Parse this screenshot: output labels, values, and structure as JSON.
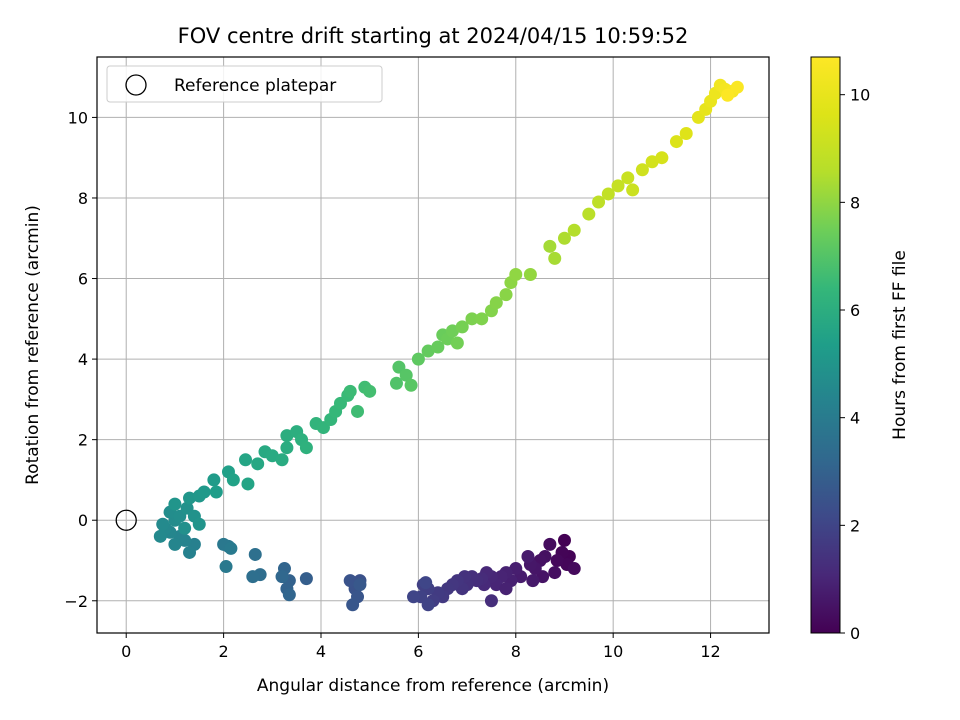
{
  "chart_data": {
    "type": "scatter",
    "title": "FOV centre drift starting at 2024/04/15 10:59:52",
    "xlabel": "Angular distance from reference (arcmin)",
    "ylabel": "Rotation from reference (arcmin)",
    "colorbar_label": "Hours from first FF file",
    "xlim": [
      -0.6,
      13.2
    ],
    "ylim": [
      -2.8,
      11.5
    ],
    "x_ticks": [
      0,
      2,
      4,
      6,
      8,
      10,
      12
    ],
    "y_ticks": [
      -2,
      0,
      2,
      4,
      6,
      8,
      10
    ],
    "x_tick_labels": [
      "0",
      "2",
      "4",
      "6",
      "8",
      "10",
      "12"
    ],
    "y_tick_labels": [
      "−2",
      "0",
      "2",
      "4",
      "6",
      "8",
      "10"
    ],
    "colorbar_range": [
      0,
      10.7
    ],
    "colorbar_ticks": [
      0,
      2,
      4,
      6,
      8,
      10
    ],
    "colorbar_tick_labels": [
      "0",
      "2",
      "4",
      "6",
      "8",
      "10"
    ],
    "colormap": "viridis",
    "grid": true,
    "legend": {
      "position": "top-left",
      "entries": [
        "Reference platepar"
      ]
    },
    "reference_point": {
      "x": 0,
      "y": 0
    },
    "points": [
      [
        9.0,
        -0.5,
        0.0
      ],
      [
        9.1,
        -0.9,
        0.05
      ],
      [
        8.95,
        -0.8,
        0.1
      ],
      [
        9.05,
        -1.1,
        0.15
      ],
      [
        8.85,
        -1.0,
        0.2
      ],
      [
        9.2,
        -1.2,
        0.25
      ],
      [
        8.7,
        -0.6,
        0.3
      ],
      [
        8.8,
        -1.3,
        0.35
      ],
      [
        8.6,
        -0.9,
        0.4
      ],
      [
        8.5,
        -1.0,
        0.45
      ],
      [
        8.55,
        -1.4,
        0.5
      ],
      [
        8.4,
        -1.2,
        0.55
      ],
      [
        8.3,
        -1.1,
        0.6
      ],
      [
        8.35,
        -1.5,
        0.65
      ],
      [
        8.25,
        -0.9,
        0.7
      ],
      [
        8.1,
        -1.4,
        0.75
      ],
      [
        8.0,
        -1.2,
        0.8
      ],
      [
        7.9,
        -1.5,
        0.85
      ],
      [
        7.8,
        -1.3,
        0.9
      ],
      [
        7.7,
        -1.4,
        0.95
      ],
      [
        7.6,
        -1.6,
        1.0
      ],
      [
        7.5,
        -1.4,
        1.05
      ],
      [
        7.4,
        -1.3,
        1.1
      ],
      [
        7.35,
        -1.6,
        1.15
      ],
      [
        7.3,
        -1.45,
        1.2
      ],
      [
        7.2,
        -1.5,
        1.25
      ],
      [
        7.1,
        -1.4,
        1.3
      ],
      [
        7.0,
        -1.6,
        1.35
      ],
      [
        6.95,
        -1.4,
        1.4
      ],
      [
        6.9,
        -1.7,
        1.45
      ],
      [
        6.8,
        -1.5,
        1.5
      ],
      [
        6.7,
        -1.6,
        1.55
      ],
      [
        6.6,
        -1.7,
        1.6
      ],
      [
        6.5,
        -1.9,
        1.65
      ],
      [
        6.4,
        -1.8,
        1.7
      ],
      [
        6.3,
        -2.0,
        1.75
      ],
      [
        6.2,
        -1.7,
        1.8
      ],
      [
        6.1,
        -1.6,
        1.85
      ],
      [
        6.05,
        -1.9,
        1.9
      ],
      [
        6.2,
        -2.1,
        1.95
      ],
      [
        5.9,
        -1.9,
        2.0
      ],
      [
        6.15,
        -1.55,
        2.05
      ],
      [
        7.5,
        -2.0,
        1.25
      ],
      [
        7.8,
        -1.7,
        0.9
      ],
      [
        4.8,
        -1.5,
        2.4
      ],
      [
        4.7,
        -1.7,
        2.45
      ],
      [
        4.6,
        -1.5,
        2.5
      ],
      [
        4.75,
        -1.9,
        2.55
      ],
      [
        4.65,
        -2.1,
        2.6
      ],
      [
        4.8,
        -1.6,
        2.65
      ],
      [
        3.7,
        -1.45,
        2.85
      ],
      [
        3.35,
        -1.5,
        3.0
      ],
      [
        3.3,
        -1.7,
        3.05
      ],
      [
        3.25,
        -1.2,
        3.1
      ],
      [
        3.35,
        -1.85,
        3.15
      ],
      [
        3.2,
        -1.4,
        3.2
      ],
      [
        2.75,
        -1.35,
        3.45
      ],
      [
        2.6,
        -1.4,
        3.5
      ],
      [
        2.65,
        -0.85,
        3.55
      ],
      [
        2.1,
        -0.65,
        3.8
      ],
      [
        2.0,
        -0.6,
        3.85
      ],
      [
        2.05,
        -1.15,
        3.9
      ],
      [
        2.15,
        -0.7,
        3.95
      ],
      [
        1.4,
        -0.6,
        4.2
      ],
      [
        1.3,
        -0.8,
        4.25
      ],
      [
        1.2,
        -0.5,
        4.3
      ],
      [
        1.1,
        -0.4,
        4.35
      ],
      [
        1.0,
        -0.6,
        4.4
      ],
      [
        0.9,
        -0.3,
        4.45
      ],
      [
        0.8,
        -0.2,
        4.5
      ],
      [
        0.7,
        -0.4,
        4.55
      ],
      [
        0.75,
        -0.1,
        4.6
      ],
      [
        1.0,
        0.0,
        4.65
      ],
      [
        0.9,
        0.2,
        4.7
      ],
      [
        1.1,
        0.1,
        4.75
      ],
      [
        1.2,
        -0.2,
        4.8
      ],
      [
        1.25,
        0.3,
        4.85
      ],
      [
        1.4,
        0.1,
        4.9
      ],
      [
        1.5,
        -0.1,
        4.95
      ],
      [
        1.0,
        0.4,
        5.0
      ],
      [
        1.3,
        0.55,
        5.05
      ],
      [
        1.5,
        0.6,
        5.1
      ],
      [
        1.6,
        0.7,
        5.15
      ],
      [
        1.8,
        1.0,
        5.25
      ],
      [
        1.85,
        0.7,
        5.3
      ],
      [
        2.1,
        1.2,
        5.45
      ],
      [
        2.2,
        1.0,
        5.5
      ],
      [
        2.5,
        0.9,
        5.6
      ],
      [
        2.45,
        1.5,
        5.65
      ],
      [
        2.7,
        1.4,
        5.75
      ],
      [
        2.85,
        1.7,
        5.8
      ],
      [
        3.0,
        1.6,
        5.85
      ],
      [
        3.2,
        1.5,
        5.9
      ],
      [
        3.3,
        1.8,
        5.95
      ],
      [
        3.3,
        2.1,
        6.0
      ],
      [
        3.5,
        2.2,
        6.05
      ],
      [
        3.6,
        2.0,
        6.1
      ],
      [
        3.7,
        1.8,
        6.15
      ],
      [
        3.9,
        2.4,
        6.25
      ],
      [
        4.05,
        2.3,
        6.3
      ],
      [
        4.2,
        2.5,
        6.35
      ],
      [
        4.3,
        2.7,
        6.4
      ],
      [
        4.4,
        2.9,
        6.45
      ],
      [
        4.55,
        3.1,
        6.5
      ],
      [
        4.6,
        3.2,
        6.55
      ],
      [
        4.75,
        2.7,
        6.6
      ],
      [
        4.9,
        3.3,
        6.65
      ],
      [
        5.0,
        3.2,
        6.7
      ],
      [
        5.55,
        3.4,
        6.95
      ],
      [
        5.6,
        3.8,
        7.0
      ],
      [
        5.75,
        3.6,
        7.05
      ],
      [
        5.85,
        3.35,
        7.1
      ],
      [
        6.0,
        4.0,
        7.2
      ],
      [
        6.2,
        4.2,
        7.3
      ],
      [
        6.4,
        4.3,
        7.35
      ],
      [
        6.5,
        4.6,
        7.4
      ],
      [
        6.6,
        4.5,
        7.45
      ],
      [
        6.7,
        4.7,
        7.5
      ],
      [
        6.8,
        4.4,
        7.55
      ],
      [
        6.9,
        4.8,
        7.6
      ],
      [
        7.1,
        5.0,
        7.7
      ],
      [
        7.3,
        5.0,
        7.75
      ],
      [
        7.5,
        5.2,
        7.8
      ],
      [
        7.6,
        5.4,
        7.85
      ],
      [
        7.8,
        5.6,
        7.9
      ],
      [
        7.9,
        5.9,
        7.95
      ],
      [
        8.0,
        6.1,
        8.0
      ],
      [
        8.3,
        6.1,
        8.05
      ],
      [
        8.7,
        6.8,
        8.3
      ],
      [
        8.8,
        6.5,
        8.35
      ],
      [
        9.0,
        7.0,
        8.45
      ],
      [
        9.2,
        7.2,
        8.55
      ],
      [
        9.5,
        7.6,
        8.7
      ],
      [
        9.7,
        7.9,
        8.8
      ],
      [
        9.9,
        8.1,
        8.9
      ],
      [
        10.1,
        8.3,
        9.0
      ],
      [
        10.3,
        8.5,
        9.1
      ],
      [
        10.4,
        8.2,
        9.15
      ],
      [
        10.6,
        8.7,
        9.25
      ],
      [
        10.8,
        8.9,
        9.35
      ],
      [
        11.0,
        9.0,
        9.45
      ],
      [
        11.3,
        9.4,
        9.6
      ],
      [
        11.5,
        9.6,
        9.7
      ],
      [
        11.75,
        10.0,
        9.85
      ],
      [
        11.9,
        10.2,
        9.95
      ],
      [
        12.0,
        10.4,
        10.05
      ],
      [
        12.1,
        10.6,
        10.15
      ],
      [
        12.2,
        10.8,
        10.3
      ],
      [
        12.3,
        10.7,
        10.4
      ],
      [
        12.45,
        10.65,
        10.5
      ],
      [
        12.55,
        10.75,
        10.6
      ],
      [
        12.35,
        10.55,
        10.65
      ]
    ]
  }
}
